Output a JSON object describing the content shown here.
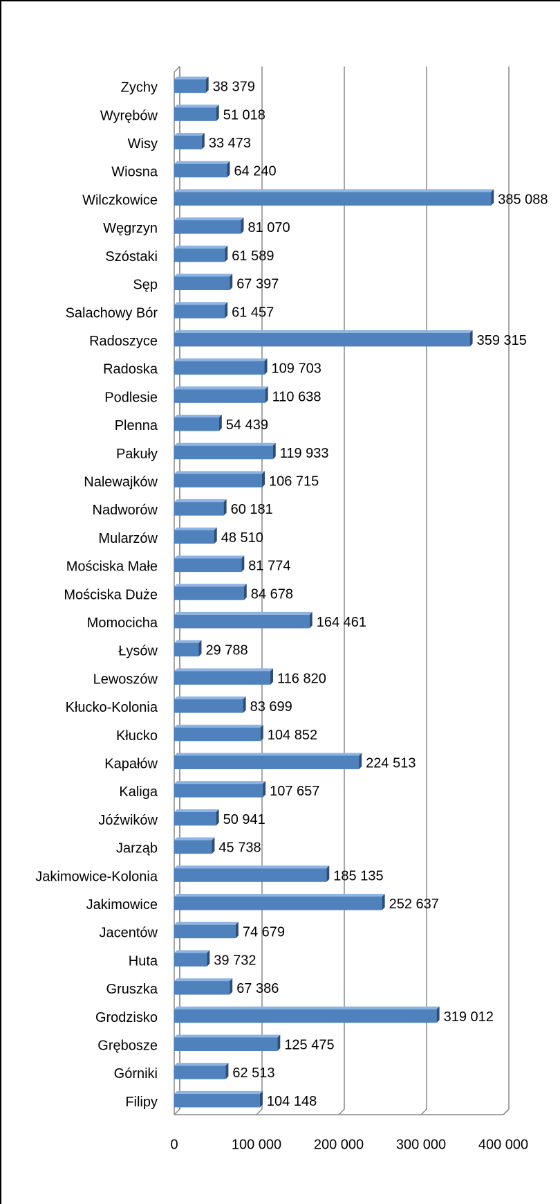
{
  "chart_data": {
    "type": "bar",
    "orientation": "horizontal",
    "categories": [
      "Zychy",
      "Wyrębów",
      "Wisy",
      "Wiosna",
      "Wilczkowice",
      "Węgrzyn",
      "Szóstaki",
      "Sęp",
      "Salachowy Bór",
      "Radoszyce",
      "Radoska",
      "Podlesie",
      "Plenna",
      "Pakuły",
      "Nalewajków",
      "Nadworów",
      "Mularzów",
      "Mościska Małe",
      "Mościska Duże",
      "Momocicha",
      "Łysów",
      "Lewoszów",
      "Kłucko-Kolonia",
      "Kłucko",
      "Kapałów",
      "Kaliga",
      "Jóźwików",
      "Jarząb",
      "Jakimowice-Kolonia",
      "Jakimowice",
      "Jacentów",
      "Huta",
      "Gruszka",
      "Grodzisko",
      "Grębosze",
      "Górniki",
      "Filipy"
    ],
    "values": [
      38379,
      51018,
      33473,
      64240,
      385088,
      81070,
      61589,
      67397,
      61457,
      359315,
      109703,
      110638,
      54439,
      119933,
      106715,
      60181,
      48510,
      81774,
      84678,
      164461,
      29788,
      116820,
      83699,
      104852,
      224513,
      107657,
      50941,
      45738,
      185135,
      252637,
      74679,
      39732,
      67386,
      319012,
      125475,
      62513,
      104148
    ],
    "value_labels": [
      "38 379",
      "51 018",
      "33 473",
      "64 240",
      "385 088",
      "81 070",
      "61 589",
      "67 397",
      "61 457",
      "359 315",
      "109 703",
      "110 638",
      "54 439",
      "119 933",
      "106 715",
      "60 181",
      "48 510",
      "81 774",
      "84 678",
      "164 461",
      "29 788",
      "116 820",
      "83 699",
      "104 852",
      "224 513",
      "107 657",
      "50 941",
      "45 738",
      "185 135",
      "252 637",
      "74 679",
      "39 732",
      "67 386",
      "319 012",
      "125 475",
      "62 513",
      "104 148"
    ],
    "color": "#4f81bd",
    "xlim": [
      0,
      400000
    ],
    "xticks": [
      0,
      {
        "value": 100000,
        "label": "100 000"
      },
      {
        "value": 200000,
        "label": "200 000"
      },
      {
        "value": 300000,
        "label": "300 000"
      },
      {
        "value": 400000,
        "label": "400 000"
      }
    ],
    "grid": true
  }
}
